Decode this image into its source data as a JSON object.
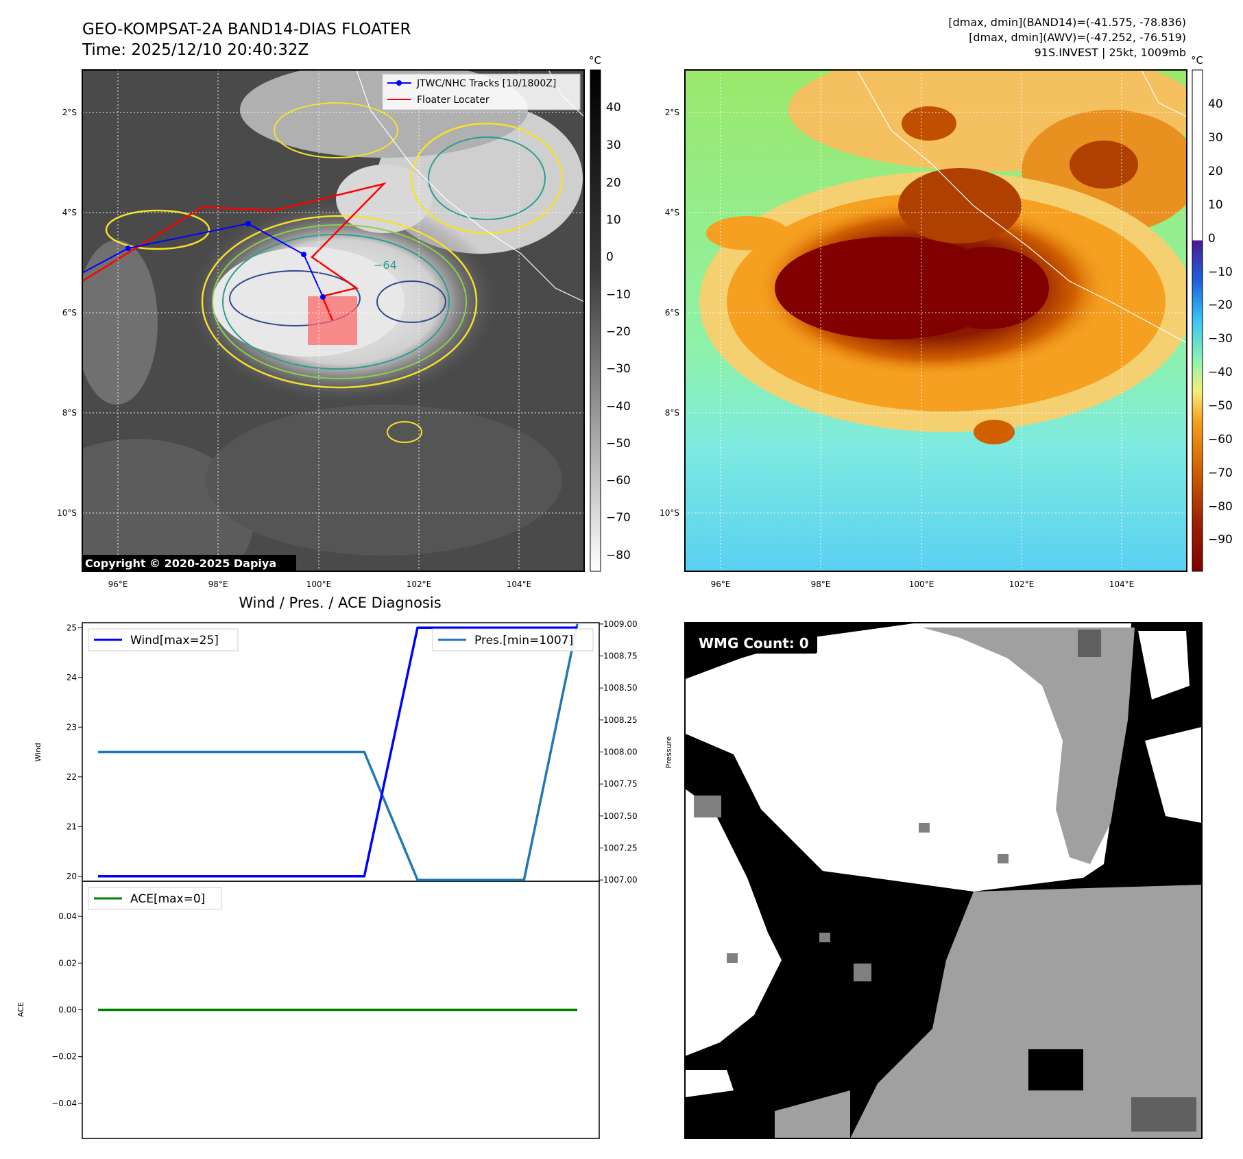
{
  "header": {
    "title": "GEO-KOMPSAT-2A BAND14-DIAS FLOATER",
    "time": "Time: 2025/12/10 20:40:32Z",
    "dmax_band14": "[dmax, dmin](BAND14)=(-41.575, -78.836)",
    "dmax_awv": "[dmax, dmin](AWV)=(-47.252, -76.519)",
    "storm": "91S.INVEST | 25kt, 1009mb"
  },
  "map": {
    "lat_labels": [
      "2°S",
      "4°S",
      "6°S",
      "8°S",
      "10°S"
    ],
    "lon_labels": [
      "96°E",
      "98°E",
      "100°E",
      "102°E",
      "104°E"
    ],
    "copyright": "Copyright © 2020-2025 Dapiya",
    "legend": {
      "tracks": "JTWC/NHC Tracks [10/1800Z]",
      "locater": "Floater Locater"
    },
    "contour_label": "−64",
    "unit": "°C"
  },
  "colorbars": {
    "ir_ticks": [
      "40",
      "30",
      "20",
      "10",
      "0",
      "−10",
      "−20",
      "−30",
      "−40",
      "−50",
      "−60",
      "−70",
      "−80"
    ],
    "awv_ticks": [
      "40",
      "30",
      "20",
      "10",
      "0",
      "−10",
      "−20",
      "−30",
      "−40",
      "−50",
      "−60",
      "−70",
      "−80",
      "−90"
    ]
  },
  "diag": {
    "title": "Wind / Pres. / ACE Diagnosis",
    "wind_ylabel": "Wind",
    "pres_ylabel": "Pressure",
    "ace_ylabel": "ACE",
    "wind_legend": "Wind[max=25]",
    "pres_legend": "Pres.[min=1007]",
    "ace_legend": "ACE[max=0]",
    "wind_ticks": [
      "25",
      "24",
      "23",
      "22",
      "21",
      "20"
    ],
    "pres_ticks": [
      "1009.00",
      "1008.75",
      "1008.50",
      "1008.25",
      "1008.00",
      "1007.75",
      "1007.50",
      "1007.25",
      "1007.00"
    ],
    "ace_ticks": [
      "0.04",
      "0.02",
      "0.00",
      "−0.02",
      "−0.04"
    ]
  },
  "wmg": {
    "label": "WMG Count: 0"
  },
  "colors": {
    "wind": "#0000ff",
    "pressure": "#1f77b4",
    "ace": "#008000",
    "track": "#0000ff",
    "locater": "#ff0000"
  },
  "chart_data": [
    {
      "type": "line",
      "title": "Wind / Pres. / ACE Diagnosis",
      "x": [
        0,
        1,
        2,
        3,
        4,
        5,
        6,
        7,
        8,
        9
      ],
      "series": [
        {
          "name": "Wind[max=25]",
          "axis": "left",
          "values": [
            20,
            20,
            20,
            20,
            20,
            20,
            25,
            25,
            25,
            25
          ]
        },
        {
          "name": "Pres.[min=1007]",
          "axis": "right",
          "values": [
            1008,
            1008,
            1008,
            1008,
            1008,
            1008,
            1007,
            1007,
            1007,
            1009
          ]
        }
      ],
      "ylabel": "Wind",
      "y2label": "Pressure",
      "ylim": [
        19.9,
        25.1
      ],
      "y2lim": [
        1006.99,
        1009.01
      ]
    },
    {
      "type": "line",
      "x": [
        0,
        1,
        2,
        3,
        4,
        5,
        6,
        7,
        8,
        9
      ],
      "series": [
        {
          "name": "ACE[max=0]",
          "values": [
            0,
            0,
            0,
            0,
            0,
            0,
            0,
            0,
            0,
            0
          ]
        }
      ],
      "ylabel": "ACE",
      "ylim": [
        -0.055,
        0.055
      ]
    }
  ]
}
